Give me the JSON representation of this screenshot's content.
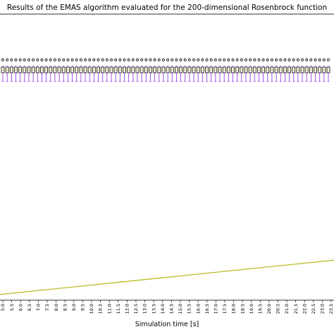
{
  "chart_data": {
    "type": "box",
    "title": "Results of the EMAS algorithm evaluated for the 200-dimensional Rosenbrock function",
    "xlabel": "Simulation time [s]",
    "ylabel": "",
    "x_tick_labels": [
      "5.0",
      "5.5",
      "6.0",
      "6.5",
      "7.0",
      "7.5",
      "8.0",
      "8.5",
      "9.0",
      "9.5",
      "10.0",
      "10.5",
      "11.0",
      "11.5",
      "12.0",
      "12.5",
      "13.0",
      "13.5",
      "14.0",
      "14.5",
      "15.0",
      "15.5",
      "16.0",
      "16.5",
      "17.0",
      "17.5",
      "18.0",
      "18.5",
      "19.0",
      "19.5",
      "20.0",
      "20.5",
      "21.0",
      "21.5",
      "22.0",
      "22.5",
      "23.0",
      "23.5"
    ],
    "boxes": {
      "count": 76,
      "outlier": 0.84,
      "whisker_high": 0.82,
      "q3": 0.815,
      "median": 0.805,
      "q1": 0.795,
      "whisker_low": 0.765
    },
    "trend_line": {
      "start": 0.02,
      "end": 0.14
    },
    "grid": false,
    "colors": {
      "box": "#000000",
      "median": "#c8a800",
      "whisker": "#8a2be2",
      "trend_line": "#bcbc2a",
      "outlier": "#000000"
    }
  }
}
